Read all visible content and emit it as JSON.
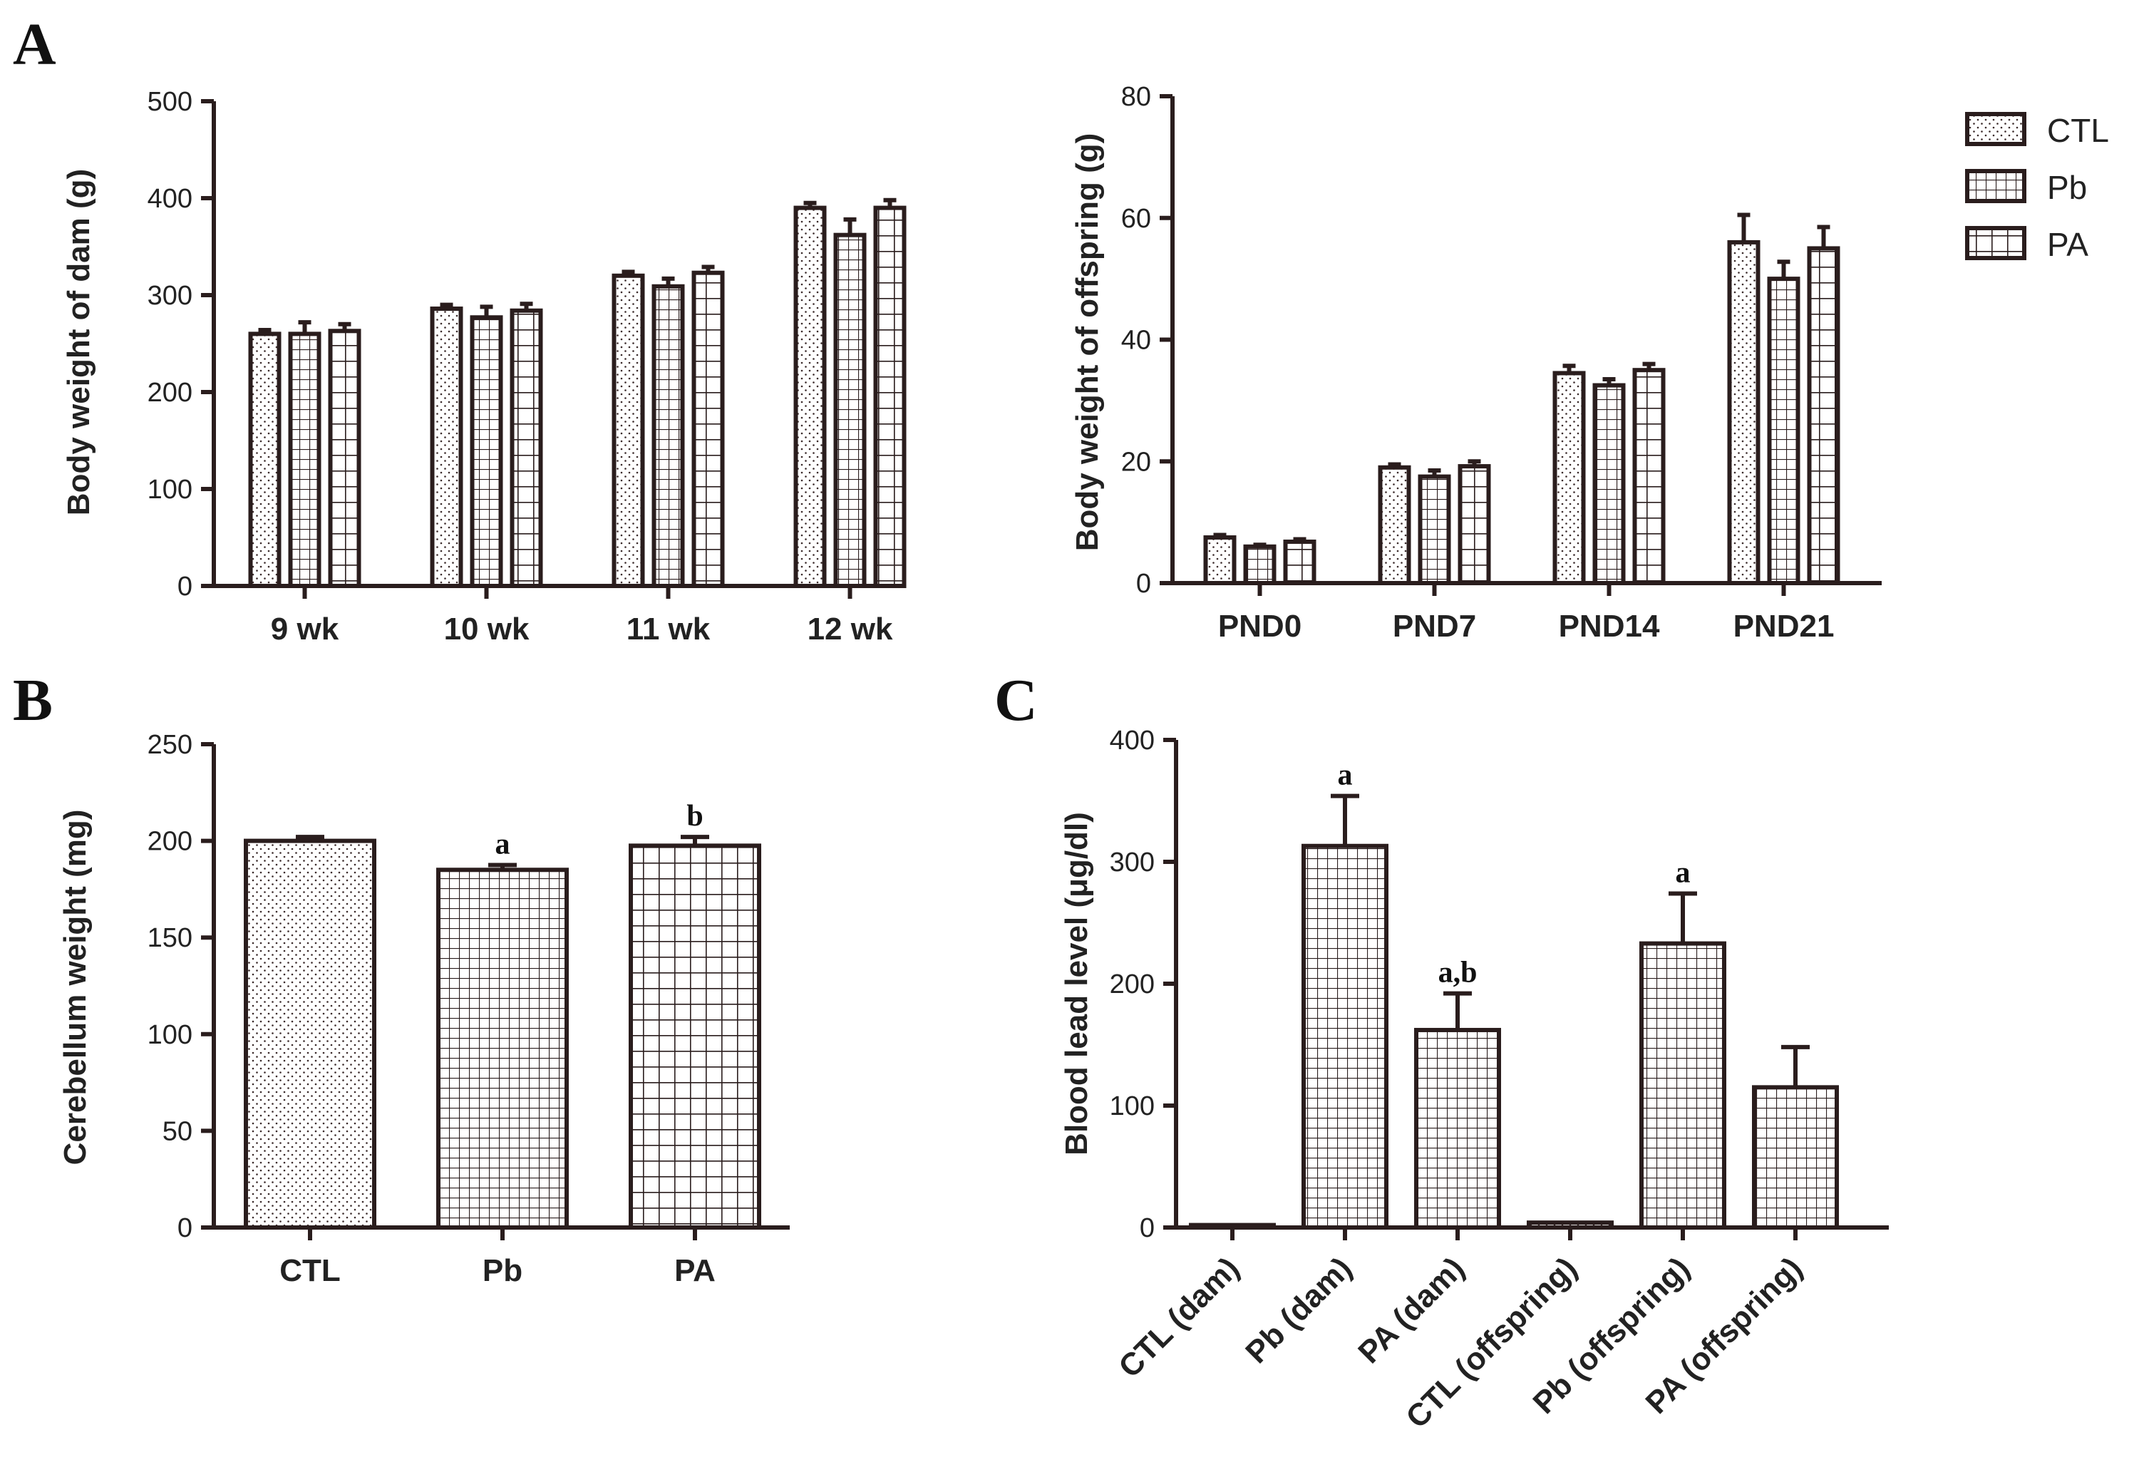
{
  "panel_labels": {
    "A": "A",
    "B": "B",
    "C": "C"
  },
  "legend": [
    {
      "label": "CTL",
      "pattern": "dots"
    },
    {
      "label": "Pb",
      "pattern": "grid"
    },
    {
      "label": "PA",
      "pattern": "bigGrid"
    }
  ],
  "colors": {
    "ink": "#2a1d1d",
    "background": "#ffffff"
  },
  "chart_data": [
    {
      "id": "dam",
      "type": "bar",
      "title": "",
      "ylabel": "Body weight of dam (g)",
      "xlabel": "",
      "ylim": [
        0,
        500
      ],
      "yticks": [
        0,
        100,
        200,
        300,
        400,
        500
      ],
      "categories": [
        "9 wk",
        "10 wk",
        "11 wk",
        "12 wk"
      ],
      "series": [
        {
          "name": "CTL",
          "pattern": "dots",
          "values": [
            260,
            286,
            320,
            390
          ],
          "errors": [
            4,
            4,
            4,
            5
          ]
        },
        {
          "name": "Pb",
          "pattern": "grid",
          "values": [
            260,
            277,
            309,
            362
          ],
          "errors": [
            12,
            11,
            8,
            16
          ]
        },
        {
          "name": "PA",
          "pattern": "bigGrid",
          "values": [
            263,
            284,
            323,
            390
          ],
          "errors": [
            7,
            7,
            6,
            8
          ]
        }
      ]
    },
    {
      "id": "offspring",
      "type": "bar",
      "title": "",
      "ylabel": "Body weight of offspring (g)",
      "xlabel": "",
      "ylim": [
        0,
        80
      ],
      "yticks": [
        0,
        20,
        40,
        60,
        80
      ],
      "categories": [
        "PND0",
        "PND7",
        "PND14",
        "PND21"
      ],
      "series": [
        {
          "name": "CTL",
          "pattern": "dots",
          "values": [
            7.5,
            19,
            34.5,
            56
          ],
          "errors": [
            0.4,
            0.5,
            1.2,
            4.5
          ]
        },
        {
          "name": "Pb",
          "pattern": "grid",
          "values": [
            6,
            17.5,
            32.5,
            50
          ],
          "errors": [
            0.3,
            1,
            1,
            2.8
          ]
        },
        {
          "name": "PA",
          "pattern": "bigGrid",
          "values": [
            6.8,
            19.2,
            35,
            55
          ],
          "errors": [
            0.4,
            0.8,
            1,
            3.5
          ]
        }
      ]
    },
    {
      "id": "cerebellum",
      "type": "bar",
      "title": "",
      "ylabel": "Cerebellum weight (mg)",
      "xlabel": "",
      "ylim": [
        0,
        250
      ],
      "yticks": [
        0,
        50,
        100,
        150,
        200,
        250
      ],
      "categories": [
        "CTL",
        "Pb",
        "PA"
      ],
      "series": [
        {
          "name": "Cerebellum weight",
          "values": [
            200,
            185,
            197.5
          ],
          "errors": [
            2,
            2.5,
            4.5
          ],
          "patterns": [
            "dots",
            "grid",
            "bigGrid"
          ],
          "annotations": [
            "",
            "a",
            "b"
          ]
        }
      ]
    },
    {
      "id": "bloodlead",
      "type": "bar",
      "title": "",
      "ylabel": "Blood lead level (μg/dl)",
      "xlabel": "",
      "ylim": [
        0,
        400
      ],
      "yticks": [
        0,
        100,
        200,
        300,
        400
      ],
      "categories": [
        "CTL (dam)",
        "Pb (dam)",
        "PA (dam)",
        "CTL (offspring)",
        "Pb (offspring)",
        "PA (offspring)"
      ],
      "series": [
        {
          "name": "Blood lead level",
          "values": [
            2,
            313,
            162,
            4,
            233,
            115
          ],
          "errors": [
            0,
            41,
            30,
            0,
            41,
            33
          ],
          "patterns": [
            "dots",
            "grid",
            "grid",
            "dots",
            "grid",
            "grid"
          ],
          "annotations": [
            "",
            "a",
            "a,b",
            "",
            "a",
            ""
          ]
        }
      ]
    }
  ]
}
